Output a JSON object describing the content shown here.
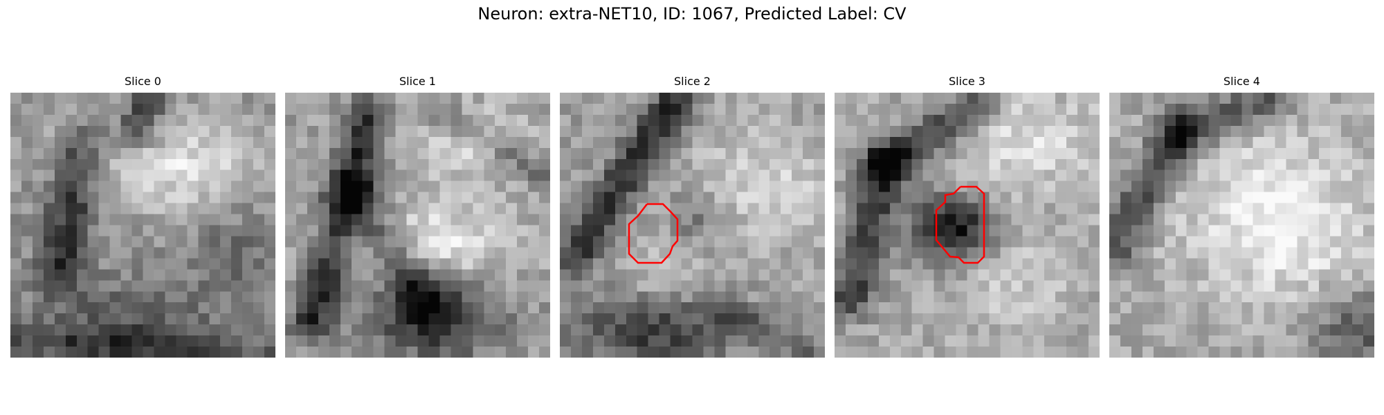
{
  "figure": {
    "title": "Neuron: extra-NET10, ID: 1067, Predicted Label: CV"
  },
  "panels": [
    {
      "title": "Slice 0",
      "has_roi": false
    },
    {
      "title": "Slice 1",
      "has_roi": false
    },
    {
      "title": "Slice 2",
      "has_roi": true
    },
    {
      "title": "Slice 3",
      "has_roi": true
    },
    {
      "title": "Slice 4",
      "has_roi": false
    }
  ],
  "roi": {
    "color": "#ff0000",
    "description": "red outline of segmented neuron"
  }
}
